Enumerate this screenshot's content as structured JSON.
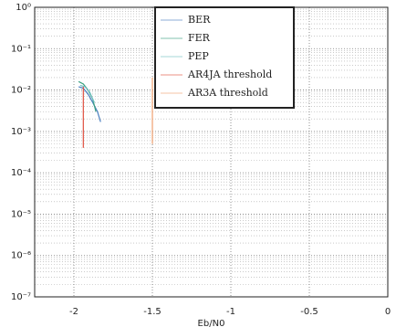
{
  "chart_data": {
    "type": "line",
    "xlabel": "Eb/N0",
    "xlim": [
      -2.25,
      0
    ],
    "xticks": [
      -2,
      -1.5,
      -1,
      -0.5,
      0
    ],
    "ylim": [
      1e-07,
      1
    ],
    "log_y": true,
    "grid": true,
    "legend": "upper center",
    "yticks": [
      {
        "value": 1e-07,
        "label": "10⁻⁷"
      },
      {
        "value": 1e-06,
        "label": "10⁻⁶"
      },
      {
        "value": 1e-05,
        "label": "10⁻⁵"
      },
      {
        "value": 0.0001,
        "label": "10⁻⁴"
      },
      {
        "value": 0.001,
        "label": "10⁻³"
      },
      {
        "value": 0.01,
        "label": "10⁻²"
      },
      {
        "value": 0.1,
        "label": "10⁻¹"
      },
      {
        "value": 1,
        "label": "10⁰"
      }
    ],
    "series": [
      {
        "name": "BER",
        "color": "#4a7fc0",
        "x": [
          -1.97,
          -1.94,
          -1.91,
          -1.88,
          -1.85,
          -1.83
        ],
        "values": [
          0.012,
          0.011,
          0.008,
          0.005,
          0.003,
          0.0017
        ]
      },
      {
        "name": "FER",
        "color": "#3aa080",
        "x": [
          -1.97,
          -1.94,
          -1.91,
          -1.88,
          -1.86
        ],
        "values": [
          0.016,
          0.014,
          0.01,
          0.006,
          0.003
        ]
      },
      {
        "name": "PEP",
        "color": "#70c0c0",
        "x": [
          -1.96,
          -1.93,
          -1.9,
          -1.87
        ],
        "values": [
          0.013,
          0.012,
          0.009,
          0.005
        ]
      },
      {
        "name": "AR4JA threshold",
        "color": "#e05040",
        "x": [
          -1.94,
          -1.94
        ],
        "values": [
          0.012,
          0.0004
        ]
      },
      {
        "name": "AR3A threshold",
        "color": "#f0a070",
        "x": [
          -1.5,
          -1.5
        ],
        "values": [
          0.02,
          0.0005
        ]
      }
    ]
  }
}
